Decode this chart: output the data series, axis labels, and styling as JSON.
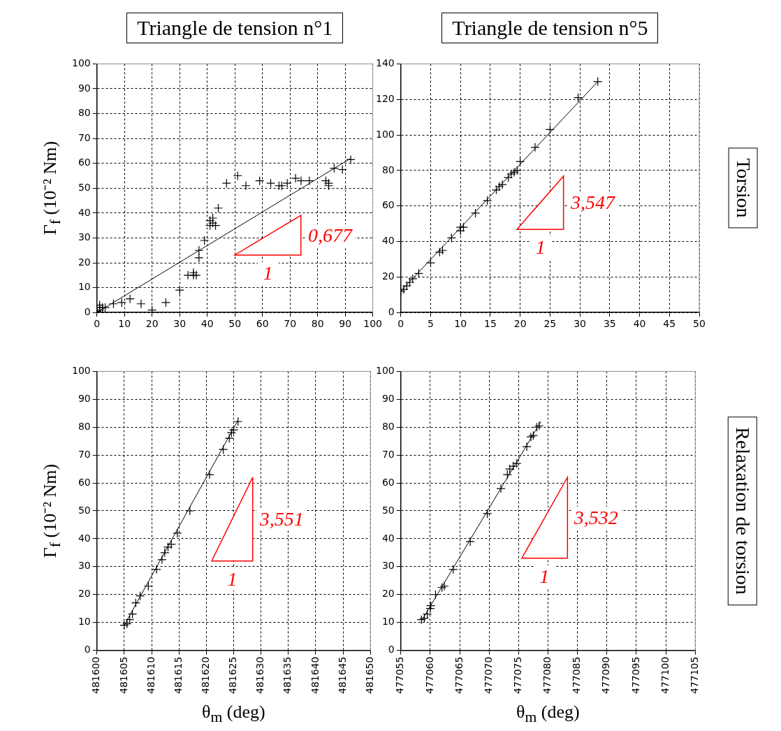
{
  "chart_data": [
    {
      "type": "scatter",
      "title": "Triangle de tension n°1",
      "ylabel": "Γ$_{f}$ (10⁻² Nm)",
      "annotations": [
        "0,677",
        "1"
      ],
      "xlim": [
        0,
        100
      ],
      "ylim": [
        0,
        100
      ],
      "xticks": [
        0,
        10,
        20,
        30,
        40,
        50,
        60,
        70,
        80,
        90,
        100
      ],
      "yticks": [
        0,
        10,
        20,
        30,
        40,
        50,
        60,
        70,
        80,
        90,
        100
      ],
      "grid": true,
      "marker": "cross",
      "series": [
        {
          "type": "scatter",
          "color": "#000000",
          "x": [
            0,
            1,
            1,
            1,
            2,
            3,
            6,
            9,
            12,
            16,
            20,
            25,
            30,
            33,
            35,
            35,
            36,
            37,
            37,
            39,
            41,
            41,
            42,
            42,
            43,
            44,
            47,
            51,
            54,
            59,
            63,
            66,
            67,
            69,
            72,
            74,
            77,
            83,
            84,
            84,
            86,
            89,
            92
          ],
          "values": [
            0.5,
            1,
            2,
            3,
            2,
            2,
            3.5,
            4,
            5.5,
            3.5,
            1,
            4,
            9,
            15,
            15,
            16,
            15,
            22,
            25,
            29,
            35,
            37,
            36,
            38,
            35,
            42,
            52,
            55,
            51,
            53,
            52,
            51,
            51,
            52,
            54,
            53,
            53,
            53,
            52,
            51,
            58,
            57.5,
            61.5
          ]
        },
        {
          "type": "line",
          "marker": "none",
          "color": "#000000",
          "x": [
            0,
            92
          ],
          "values": [
            0,
            62
          ]
        }
      ]
    },
    {
      "type": "scatter",
      "title": "Triangle de tension n°5",
      "annotations": [
        "3,547",
        "1",
        "Torsion"
      ],
      "xlim": [
        0,
        50
      ],
      "ylim": [
        0,
        140
      ],
      "xticks": [
        0,
        5,
        10,
        15,
        20,
        25,
        30,
        35,
        40,
        45,
        50
      ],
      "yticks": [
        0,
        20,
        40,
        60,
        80,
        100,
        120,
        140
      ],
      "grid": true,
      "marker": "cross",
      "series": [
        {
          "type": "scatter",
          "color": "#000000",
          "x": [
            0,
            0.5,
            1,
            1.5,
            2,
            3,
            5,
            6.5,
            7,
            8.5,
            10,
            10,
            10.5,
            12.5,
            14.5,
            16,
            16.5,
            17,
            18,
            18.5,
            19,
            19.5,
            20,
            22.5,
            25,
            29.7,
            33
          ],
          "values": [
            12,
            13,
            15,
            17,
            19,
            22,
            28,
            34,
            35,
            42,
            46,
            48,
            48,
            56,
            63,
            69,
            71,
            72,
            76,
            78,
            79,
            80,
            85,
            93,
            103,
            121,
            130
          ]
        },
        {
          "type": "line",
          "marker": "none",
          "color": "#000000",
          "x": [
            0,
            33
          ],
          "values": [
            12,
            130
          ]
        }
      ]
    },
    {
      "type": "scatter",
      "xlabel": "θ$_{m}$ (deg)",
      "ylabel": "Γ$_{f}$ (10⁻² Nm)",
      "annotations": [
        "3,551",
        "1"
      ],
      "xlim": [
        481600,
        481650
      ],
      "ylim": [
        0,
        100
      ],
      "xticks": [
        481600,
        481605,
        481610,
        481615,
        481620,
        481625,
        481630,
        481635,
        481640,
        481645,
        481650
      ],
      "yticks": [
        0,
        10,
        20,
        30,
        40,
        50,
        60,
        70,
        80,
        90,
        100
      ],
      "grid": true,
      "marker": "cross",
      "series": [
        {
          "type": "scatter",
          "color": "#000000",
          "x": [
            481605,
            481605.5,
            481606,
            481606.5,
            481607.1,
            481607.9,
            481609.4,
            481610.9,
            481611.9,
            481612.4,
            481613,
            481613.6,
            481614.7,
            481617,
            481620.6,
            481623.1,
            481624.2,
            481624.6,
            481625,
            481625.8
          ],
          "values": [
            9,
            9.5,
            11,
            13,
            17,
            19.5,
            23,
            29,
            32.5,
            35,
            37,
            38,
            42,
            50,
            63,
            72,
            76,
            78,
            79,
            82
          ]
        },
        {
          "type": "line",
          "marker": "none",
          "color": "#000000",
          "x": [
            481605,
            481625.8
          ],
          "values": [
            9,
            82.5
          ]
        }
      ]
    },
    {
      "type": "scatter",
      "xlabel": "θ$_{m}$ (deg)",
      "annotations": [
        "3,532",
        "1",
        "Relaxation de torsion"
      ],
      "xlim": [
        477055,
        477105
      ],
      "ylim": [
        0,
        100
      ],
      "xticks": [
        477055,
        477060,
        477065,
        477070,
        477075,
        477080,
        477085,
        477090,
        477095,
        477100,
        477105
      ],
      "yticks": [
        0,
        10,
        20,
        30,
        40,
        50,
        60,
        70,
        80,
        90,
        100
      ],
      "grid": true,
      "marker": "cross",
      "series": [
        {
          "type": "scatter",
          "color": "#000000",
          "x": [
            477058.5,
            477059,
            477059.5,
            477060,
            477060.1,
            477060.9,
            477062,
            477062.4,
            477063.9,
            477066.8,
            477069.7,
            477072,
            477073.1,
            477073.5,
            477074.1,
            477074.7,
            477076.4,
            477077.1,
            477077.5,
            477078.1,
            477078.5
          ],
          "values": [
            11,
            11.5,
            13,
            15,
            16,
            20,
            22.5,
            23,
            29,
            39,
            49,
            58,
            63,
            65,
            66,
            67,
            73,
            76.5,
            77,
            80,
            80.5
          ]
        },
        {
          "type": "line",
          "marker": "none",
          "color": "#000000",
          "x": [
            477058.5,
            477078.8
          ],
          "values": [
            10.5,
            82
          ]
        }
      ]
    }
  ]
}
